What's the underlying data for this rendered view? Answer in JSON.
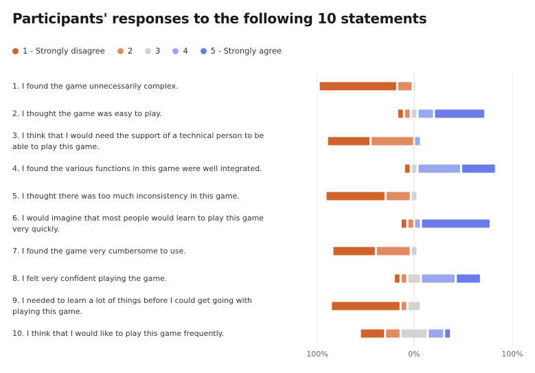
{
  "title": "Participants' responses to the following 10 statements",
  "legend": [
    {
      "label": "1 - Strongly disagree",
      "color": "#d0622c"
    },
    {
      "label": "2",
      "color": "#e08b62"
    },
    {
      "label": "3",
      "color": "#d3d3d3"
    },
    {
      "label": "4",
      "color": "#9aa8f0"
    },
    {
      "label": "5 - Strongly agree",
      "color": "#6b7ce8"
    }
  ],
  "chart_data": {
    "type": "bar",
    "subtype": "diverging-stacked-horizontal",
    "x_tick_labels": [
      "100%",
      "0%",
      "100%"
    ],
    "xlim": [
      -100,
      100
    ],
    "categories": [
      "1. I found the game unnecessarily complex.",
      "2. I thought the game was easy to play.",
      "3. I think that I would need the support of a technical person to be able to play this game.",
      "4. I found the various functions in this game were well integrated.",
      "5. I thought there was too much inconsistency in this game.",
      "6. I would imagine that most people would learn to play this game very quickly.",
      "7. I found the game very cumbersome to use.",
      "8. I felt very confident playing the game.",
      "9. I needed to learn a lot of things before I could get going with playing  this game.",
      "10. I think that I would like to play this game frequently."
    ],
    "series": [
      {
        "name": "1 - Strongly disagree",
        "values": [
          81,
          7,
          45,
          7,
          62,
          7,
          45,
          7,
          72,
          26
        ]
      },
      {
        "name": "2",
        "values": [
          16,
          7,
          45,
          0,
          26,
          7,
          36,
          7,
          7,
          16
        ]
      },
      {
        "name": "3",
        "values": [
          3,
          7,
          0,
          7,
          7,
          0,
          7,
          14,
          14,
          28
        ]
      },
      {
        "name": "4",
        "values": [
          0,
          17,
          7,
          45,
          0,
          7,
          0,
          36,
          0,
          17
        ]
      },
      {
        "name": "5 - Strongly agree",
        "values": [
          0,
          53,
          0,
          36,
          0,
          72,
          0,
          26,
          0,
          7
        ]
      }
    ]
  }
}
